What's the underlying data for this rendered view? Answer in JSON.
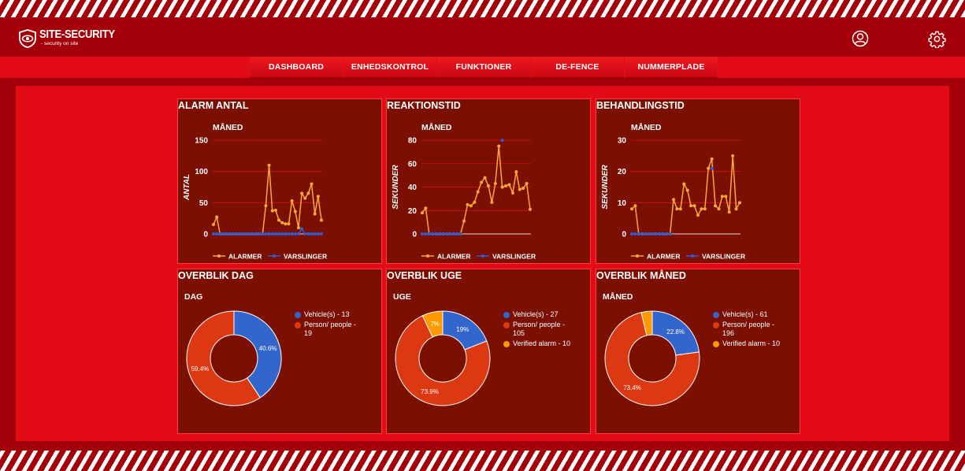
{
  "brand": {
    "title": "SITE-SECURITY",
    "subtitle": "- security on site"
  },
  "nav": [
    "DASHBOARD",
    "ENHEDSKONTROL",
    "FUNKTIONER",
    "DE-FENCE",
    "NUMMERPLADE"
  ],
  "colors": {
    "alarmer": "#f7a93b",
    "varslinger": "#2f5dd6",
    "vehicle": "#3366cc",
    "person": "#dc3912",
    "verified": "#ff9900",
    "panel": "#7a0f02"
  },
  "line_panels": [
    {
      "title": "ALARM ANTAL",
      "subtitle": "MÅNED",
      "ylabel": "ANTAL",
      "legend": [
        "ALARMER",
        "VARSLINGER"
      ]
    },
    {
      "title": "REAKTIONSTID",
      "subtitle": "MÅNED",
      "ylabel": "SEKUNDER",
      "legend": [
        "ALARMER",
        "VARSLINGER"
      ]
    },
    {
      "title": "BEHANDLINGSTID",
      "subtitle": "MÅNED",
      "ylabel": "SEKUNDER",
      "legend": [
        "ALARMER",
        "VARSLINGER"
      ]
    }
  ],
  "donut_panels": [
    {
      "title": "OVERBLIK DAG",
      "subtitle": "DAG"
    },
    {
      "title": "OVERBLIK UGE",
      "subtitle": "UGE"
    },
    {
      "title": "OVERBLIK MÅNED",
      "subtitle": "MÅNED"
    }
  ],
  "chart_data": [
    {
      "type": "line",
      "title": "ALARM ANTAL",
      "subtitle": "MÅNED",
      "ylabel": "ANTAL",
      "ylim": [
        0,
        150
      ],
      "yticks": [
        0,
        50,
        100,
        150
      ],
      "legend": "bottom",
      "series": [
        {
          "name": "ALARMER",
          "values": [
            15,
            27,
            0,
            0,
            0,
            0,
            0,
            0,
            0,
            0,
            0,
            0,
            0,
            0,
            0,
            0,
            45,
            110,
            37,
            38,
            22,
            18,
            16,
            16,
            53,
            36,
            10,
            65,
            57,
            65,
            80,
            32,
            60,
            22
          ]
        },
        {
          "name": "VARSLINGER",
          "values": [
            0,
            0,
            0,
            0,
            0,
            0,
            0,
            0,
            0,
            0,
            0,
            0,
            0,
            0,
            0,
            0,
            0,
            0,
            0,
            0,
            0,
            0,
            0,
            0,
            0,
            0,
            0,
            8,
            0,
            0,
            0,
            0,
            0,
            0
          ]
        }
      ]
    },
    {
      "type": "line",
      "title": "REAKTIONSTID",
      "subtitle": "MÅNED",
      "ylabel": "SEKUNDER",
      "ylim": [
        0,
        80
      ],
      "yticks": [
        0,
        20,
        40,
        60,
        80
      ],
      "legend": "bottom",
      "series": [
        {
          "name": "ALARMER",
          "values": [
            18,
            22,
            0,
            0,
            0,
            0,
            0,
            0,
            0,
            0,
            0,
            0,
            11,
            25,
            24,
            27,
            36,
            44,
            48,
            41,
            27,
            43,
            75,
            40,
            41,
            42,
            35,
            53,
            38,
            39,
            43,
            21
          ]
        },
        {
          "name": "VARSLINGER",
          "values": [
            0,
            0,
            0,
            0,
            0,
            0,
            0,
            0,
            0,
            0,
            0,
            0,
            null,
            null,
            null,
            null,
            null,
            null,
            null,
            null,
            null,
            null,
            null,
            80,
            null,
            null,
            null,
            null,
            null,
            null,
            null,
            null
          ]
        }
      ]
    },
    {
      "type": "line",
      "title": "BEHANDLINGSTID",
      "subtitle": "MÅNED",
      "ylabel": "SEKUNDER",
      "ylim": [
        0,
        30
      ],
      "yticks": [
        0,
        10,
        20,
        30
      ],
      "legend": "bottom",
      "series": [
        {
          "name": "ALARMER",
          "values": [
            8,
            9,
            0,
            0,
            0,
            0,
            0,
            0,
            0,
            0,
            0,
            0,
            11,
            8,
            8,
            16,
            14,
            9,
            9,
            6,
            8,
            8,
            21,
            24,
            9,
            8,
            12,
            12,
            7,
            25,
            8,
            10
          ]
        },
        {
          "name": "VARSLINGER",
          "values": [
            0,
            0,
            0,
            0,
            0,
            0,
            0,
            0,
            0,
            0,
            0,
            0,
            null,
            null,
            null,
            null,
            null,
            null,
            null,
            null,
            null,
            null,
            null,
            21,
            null,
            null,
            null,
            null,
            null,
            null,
            null,
            null
          ]
        }
      ]
    },
    {
      "type": "pie",
      "title": "OVERBLIK DAG",
      "subtitle": "DAG",
      "donut": true,
      "legend": "right",
      "slices": [
        {
          "label": "Vehicle(s) - 13",
          "value": 13,
          "pct": "40.6%",
          "color": "#3366cc"
        },
        {
          "label": "Person/ people - 19",
          "value": 19,
          "pct": "59.4%",
          "color": "#dc3912"
        }
      ]
    },
    {
      "type": "pie",
      "title": "OVERBLIK UGE",
      "subtitle": "UGE",
      "donut": true,
      "legend": "right",
      "slices": [
        {
          "label": "Vehicle(s) - 27",
          "value": 27,
          "pct": "19%",
          "color": "#3366cc"
        },
        {
          "label": "Person/ people - 105",
          "value": 105,
          "pct": "73.9%",
          "color": "#dc3912"
        },
        {
          "label": "Verified alarm - 10",
          "value": 10,
          "pct": "7%",
          "color": "#ff9900"
        }
      ]
    },
    {
      "type": "pie",
      "title": "OVERBLIK MÅNED",
      "subtitle": "MÅNED",
      "donut": true,
      "legend": "right",
      "slices": [
        {
          "label": "Vehicle(s) - 61",
          "value": 61,
          "pct": "22.8%",
          "color": "#3366cc"
        },
        {
          "label": "Person/ people - 196",
          "value": 196,
          "pct": "73.4%",
          "color": "#dc3912"
        },
        {
          "label": "Verified alarm - 10",
          "value": 10,
          "pct": "",
          "color": "#ff9900"
        }
      ]
    }
  ]
}
